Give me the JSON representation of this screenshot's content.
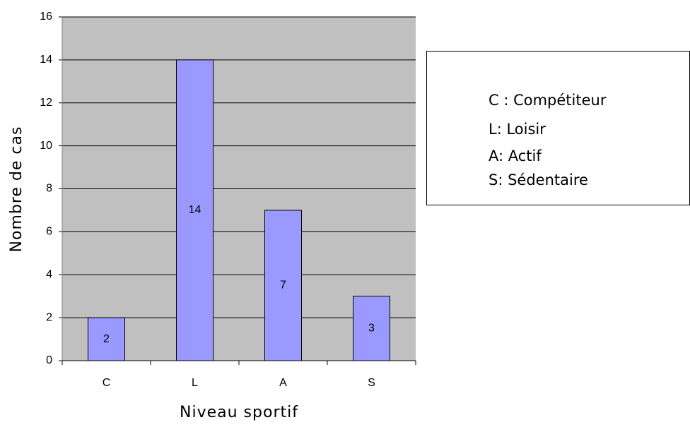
{
  "chart_data": {
    "type": "bar",
    "categories": [
      "C",
      "L",
      "A",
      "S"
    ],
    "values": [
      2,
      14,
      7,
      3
    ],
    "color": "#9999ff",
    "ylim": [
      0,
      16
    ],
    "yticks": [
      0,
      2,
      4,
      6,
      8,
      10,
      12,
      14,
      16
    ],
    "grid": true,
    "xlabel": "Niveau sportif",
    "ylabel": "Nombre de cas",
    "annotations": [
      "C : Compétiteur",
      "L: Loisir",
      "A: Actif",
      "S: Sédentaire"
    ]
  }
}
